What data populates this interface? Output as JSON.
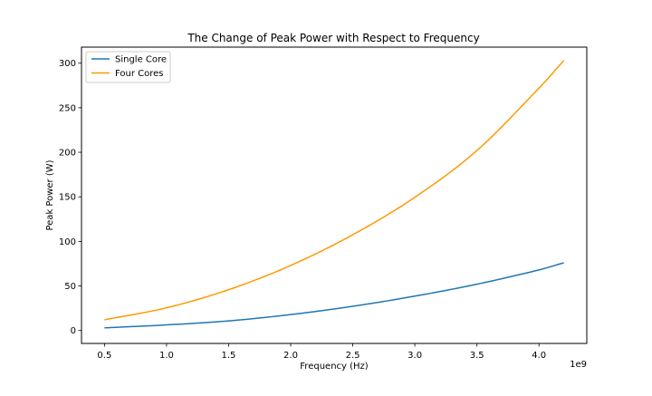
{
  "chart_data": {
    "type": "line",
    "title": "The Change of Peak Power with Respect to Frequency",
    "xlabel": "Frequency (Hz)",
    "ylabel": "Peak Power (W)",
    "x_offset_label": "1e9",
    "x_unit_multiplier": 1000000000,
    "xlim": [
      0.315,
      4.385
    ],
    "ylim": [
      -14.5,
      318
    ],
    "x_ticks": [
      0.5,
      1.0,
      1.5,
      2.0,
      2.5,
      3.0,
      3.5,
      4.0
    ],
    "x_tick_labels": [
      "0.5",
      "1.0",
      "1.5",
      "2.0",
      "2.5",
      "3.0",
      "3.5",
      "4.0"
    ],
    "y_ticks": [
      0,
      50,
      100,
      150,
      200,
      250,
      300
    ],
    "y_tick_labels": [
      "0",
      "50",
      "100",
      "150",
      "200",
      "250",
      "300"
    ],
    "legend_position": "top-left",
    "grid": false,
    "x": [
      0.5,
      1.0,
      1.5,
      2.0,
      2.5,
      3.0,
      3.5,
      4.0,
      4.2
    ],
    "series": [
      {
        "name": "Single Core",
        "color": "#1f77b4",
        "values": [
          3.0,
          6.3,
          10.8,
          17.9,
          27.2,
          38.6,
          52.0,
          68.0,
          76.0
        ]
      },
      {
        "name": "Four Cores",
        "color": "#ff9900",
        "values": [
          12.0,
          25.5,
          45.8,
          73.0,
          107.5,
          149.5,
          202.0,
          272.0,
          303.0
        ]
      }
    ]
  }
}
